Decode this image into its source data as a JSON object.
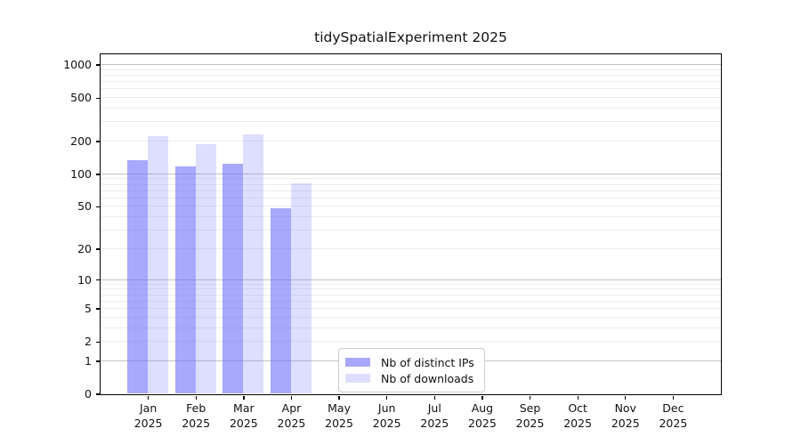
{
  "chart_data": {
    "type": "bar",
    "title": "tidySpatialExperiment 2025",
    "categories": [
      {
        "month": "Jan",
        "year": "2025"
      },
      {
        "month": "Feb",
        "year": "2025"
      },
      {
        "month": "Mar",
        "year": "2025"
      },
      {
        "month": "Apr",
        "year": "2025"
      },
      {
        "month": "May",
        "year": "2025"
      },
      {
        "month": "Jun",
        "year": "2025"
      },
      {
        "month": "Jul",
        "year": "2025"
      },
      {
        "month": "Aug",
        "year": "2025"
      },
      {
        "month": "Sep",
        "year": "2025"
      },
      {
        "month": "Oct",
        "year": "2025"
      },
      {
        "month": "Nov",
        "year": "2025"
      },
      {
        "month": "Dec",
        "year": "2025"
      }
    ],
    "series": [
      {
        "name": "Nb of distinct IPs",
        "color": "rgba(105,105,250,0.58)",
        "values": [
          133,
          118,
          124,
          48,
          0,
          0,
          0,
          0,
          0,
          0,
          0,
          0
        ]
      },
      {
        "name": "Nb of downloads",
        "color": "rgba(105,105,250,0.22)",
        "values": [
          222,
          186,
          229,
          82,
          0,
          0,
          0,
          0,
          0,
          0,
          0,
          0
        ]
      }
    ],
    "y_axis": {
      "scale": "log10(value+1)",
      "ticks": [
        0,
        1,
        2,
        5,
        10,
        20,
        50,
        100,
        200,
        500,
        1000
      ],
      "major_gridlines": [
        1,
        10,
        100,
        1000
      ],
      "ylim": [
        0,
        1253
      ]
    },
    "legend": {
      "position": "lower center"
    },
    "grid": true
  },
  "colors": {
    "distinct_ips_bar": "#a8a8f8",
    "downloads_bar": "#dcdcf8",
    "major_gridline": "#c3c3c3",
    "minor_gridline": "#ededed",
    "axis": "#000000",
    "text": "#111111",
    "legend_border": "#cccccc"
  }
}
